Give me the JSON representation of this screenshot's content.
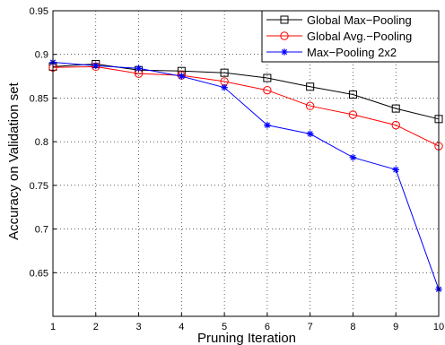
{
  "chart_data": {
    "type": "line",
    "title": "",
    "xlabel": "Pruning Iteration",
    "ylabel": "Accuracy on Validation set",
    "x": [
      1,
      2,
      3,
      4,
      5,
      6,
      7,
      8,
      9,
      10
    ],
    "xlim": [
      1,
      10
    ],
    "ylim": [
      0.6,
      0.95
    ],
    "xticks": [
      "1",
      "2",
      "3",
      "4",
      "5",
      "6",
      "7",
      "8",
      "9",
      "10"
    ],
    "yticks": [
      "0.65",
      "0.7",
      "0.75",
      "0.8",
      "0.85",
      "0.9",
      "0.95"
    ],
    "ytick_values": [
      0.65,
      0.7,
      0.75,
      0.8,
      0.85,
      0.9,
      0.95
    ],
    "grid": true,
    "grid_style": "dotted",
    "legend_position": "top-right",
    "series": [
      {
        "name": "Global Max−Pooling",
        "color": "#000000",
        "marker": "square",
        "values": [
          0.886,
          0.889,
          0.882,
          0.881,
          0.879,
          0.873,
          0.863,
          0.854,
          0.838,
          0.826
        ]
      },
      {
        "name": "Global Avg.−Pooling",
        "color": "#ff0000",
        "marker": "circle",
        "values": [
          0.885,
          0.886,
          0.878,
          0.876,
          0.869,
          0.859,
          0.841,
          0.831,
          0.819,
          0.795
        ]
      },
      {
        "name": "Max−Pooling 2x2",
        "color": "#0000ff",
        "marker": "star",
        "values": [
          0.891,
          0.887,
          0.884,
          0.875,
          0.862,
          0.819,
          0.809,
          0.782,
          0.768,
          0.631
        ]
      }
    ]
  }
}
